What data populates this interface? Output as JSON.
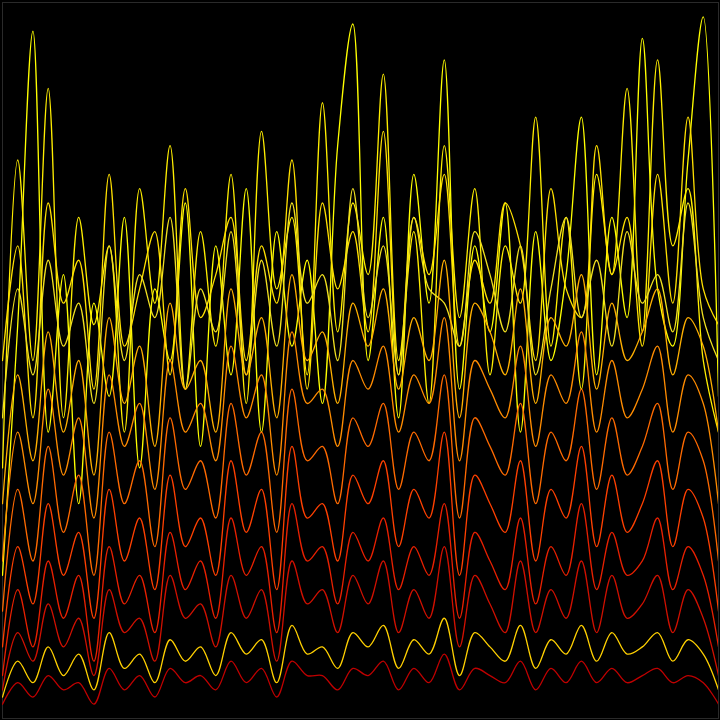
{
  "chart_data": {
    "type": "line",
    "tick_labels": false,
    "x": [
      0,
      1,
      2,
      3,
      4,
      5,
      6,
      7,
      8,
      9,
      10,
      11,
      12,
      13,
      14,
      15,
      16,
      17,
      18,
      19,
      20,
      21,
      22,
      23,
      24,
      25,
      26,
      27,
      28,
      29,
      30,
      31,
      32,
      33,
      34,
      35,
      36,
      37,
      38,
      39,
      40,
      41,
      42,
      43,
      44,
      45,
      46,
      47
    ],
    "xlim": [
      0,
      47
    ],
    "ylim": [
      0,
      100
    ],
    "series": [
      {
        "color": "#ffff00",
        "values": [
          20,
          55,
          96,
          40,
          62,
          30,
          58,
          45,
          70,
          35,
          60,
          50,
          72,
          38,
          66,
          48,
          74,
          40,
          68,
          52,
          64,
          44,
          80,
          97,
          50,
          70,
          42,
          76,
          58,
          92,
          46,
          66,
          54,
          72,
          40,
          68,
          50,
          62,
          84,
          48,
          70,
          56,
          95,
          60,
          52,
          78,
          98,
          45
        ]
      },
      {
        "color": "#ffee00",
        "values": [
          35,
          78,
          50,
          88,
          42,
          70,
          55,
          66,
          40,
          74,
          58,
          80,
          46,
          68,
          52,
          76,
          44,
          82,
          60,
          70,
          48,
          86,
          54,
          72,
          62,
          90,
          50,
          68,
          44,
          80,
          56,
          74,
          48,
          66,
          58,
          84,
          52,
          70,
          46,
          76,
          62,
          88,
          54,
          92,
          66,
          74,
          50,
          40
        ]
      },
      {
        "color": "#ffe000",
        "values": [
          50,
          66,
          42,
          72,
          58,
          64,
          46,
          76,
          52,
          60,
          68,
          48,
          74,
          56,
          62,
          70,
          50,
          66,
          58,
          78,
          46,
          72,
          60,
          68,
          54,
          82,
          48,
          70,
          62,
          76,
          52,
          64,
          58,
          72,
          66,
          50,
          74,
          60,
          56,
          80,
          62,
          70,
          52,
          76,
          58,
          84,
          60,
          55
        ]
      },
      {
        "color": "#f0e020",
        "values": [
          42,
          60,
          48,
          64,
          52,
          58,
          44,
          66,
          50,
          62,
          56,
          70,
          46,
          60,
          54,
          68,
          48,
          64,
          52,
          72,
          58,
          62,
          50,
          74,
          56,
          66,
          48,
          70,
          60,
          58,
          52,
          68,
          62,
          54,
          66,
          48,
          60,
          70,
          56,
          64,
          52,
          68,
          58,
          62,
          54,
          72,
          56,
          50
        ]
      },
      {
        "color": "#ffb000",
        "values": [
          30,
          48,
          36,
          54,
          40,
          50,
          34,
          56,
          44,
          52,
          38,
          58,
          46,
          50,
          40,
          60,
          48,
          56,
          42,
          62,
          50,
          54,
          44,
          58,
          52,
          60,
          46,
          56,
          50,
          64,
          42,
          58,
          54,
          48,
          60,
          44,
          56,
          52,
          62,
          46,
          58,
          50,
          54,
          60,
          48,
          56,
          52,
          40
        ]
      },
      {
        "color": "#ff8c00",
        "values": [
          22,
          40,
          30,
          46,
          34,
          42,
          28,
          48,
          38,
          44,
          32,
          50,
          40,
          44,
          36,
          52,
          42,
          48,
          34,
          54,
          44,
          46,
          38,
          50,
          46,
          52,
          40,
          48,
          44,
          56,
          36,
          50,
          46,
          42,
          52,
          38,
          48,
          44,
          54,
          40,
          50,
          42,
          46,
          52,
          40,
          48,
          44,
          30
        ]
      },
      {
        "color": "#ff6a00",
        "values": [
          15,
          32,
          22,
          38,
          26,
          34,
          20,
          40,
          30,
          36,
          24,
          42,
          32,
          36,
          28,
          44,
          34,
          40,
          26,
          46,
          36,
          38,
          30,
          42,
          38,
          44,
          32,
          40,
          36,
          48,
          28,
          42,
          38,
          34,
          44,
          30,
          40,
          36,
          46,
          32,
          42,
          34,
          38,
          44,
          32,
          40,
          36,
          22
        ]
      },
      {
        "color": "#ff4000",
        "values": [
          10,
          24,
          16,
          30,
          20,
          26,
          14,
          32,
          22,
          28,
          18,
          34,
          24,
          28,
          20,
          36,
          26,
          32,
          18,
          38,
          28,
          30,
          22,
          34,
          30,
          36,
          24,
          32,
          28,
          40,
          20,
          34,
          30,
          26,
          36,
          22,
          32,
          28,
          38,
          24,
          34,
          26,
          30,
          36,
          24,
          32,
          28,
          15
        ]
      },
      {
        "color": "#e82000",
        "values": [
          6,
          18,
          10,
          22,
          14,
          20,
          8,
          24,
          16,
          20,
          12,
          26,
          18,
          22,
          14,
          28,
          20,
          24,
          12,
          30,
          22,
          24,
          16,
          26,
          22,
          28,
          18,
          24,
          20,
          30,
          14,
          26,
          22,
          18,
          28,
          16,
          24,
          20,
          30,
          18,
          26,
          20,
          22,
          28,
          18,
          24,
          20,
          10
        ]
      },
      {
        "color": "#d01000",
        "values": [
          4,
          12,
          8,
          16,
          10,
          14,
          6,
          18,
          12,
          14,
          8,
          20,
          14,
          16,
          10,
          20,
          14,
          18,
          8,
          22,
          16,
          18,
          12,
          20,
          16,
          22,
          12,
          18,
          14,
          24,
          10,
          20,
          16,
          12,
          22,
          12,
          18,
          14,
          22,
          12,
          20,
          14,
          16,
          20,
          12,
          18,
          14,
          6
        ]
      },
      {
        "color": "#ffd000",
        "values": [
          3,
          8,
          5,
          10,
          6,
          9,
          4,
          12,
          7,
          9,
          5,
          11,
          8,
          10,
          6,
          12,
          9,
          11,
          5,
          13,
          9,
          10,
          7,
          12,
          10,
          13,
          7,
          11,
          9,
          14,
          6,
          12,
          10,
          8,
          13,
          7,
          11,
          9,
          13,
          8,
          12,
          9,
          10,
          12,
          8,
          11,
          9,
          4
        ]
      },
      {
        "color": "#c00000",
        "values": [
          2,
          5,
          3,
          6,
          4,
          5,
          2,
          7,
          4,
          6,
          3,
          7,
          5,
          6,
          4,
          8,
          5,
          7,
          3,
          8,
          6,
          6,
          4,
          7,
          6,
          8,
          4,
          7,
          5,
          9,
          4,
          7,
          6,
          5,
          8,
          4,
          7,
          5,
          8,
          5,
          7,
          5,
          6,
          7,
          5,
          6,
          5,
          2
        ]
      }
    ]
  }
}
